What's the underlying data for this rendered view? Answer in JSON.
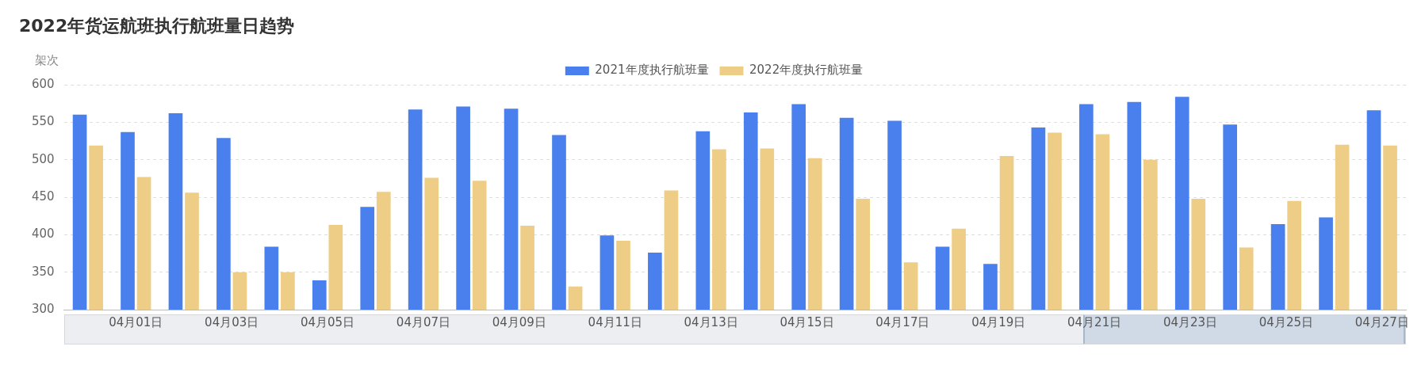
{
  "chart_data": {
    "type": "bar",
    "title": "2022年货运航班执行航班量日趋势",
    "ylabel": "架次",
    "categories": [
      null,
      "04月01日",
      null,
      "04月03日",
      null,
      "04月05日",
      null,
      "04月07日",
      null,
      "04月09日",
      null,
      "04月11日",
      null,
      "04月13日",
      null,
      "04月15日",
      null,
      "04月17日",
      null,
      "04月19日",
      null,
      "04月21日",
      null,
      "04月23日",
      null,
      "04月25日",
      null,
      "04月27日"
    ],
    "series": [
      {
        "name": "2021年度执行航班量",
        "color": "#4a80ee",
        "values": [
          560,
          537,
          562,
          529,
          384,
          339,
          437,
          567,
          571,
          568,
          533,
          399,
          376,
          538,
          563,
          574,
          556,
          552,
          384,
          361,
          543,
          574,
          577,
          584,
          547,
          414,
          423,
          566
        ]
      },
      {
        "name": "2022年度执行航班量",
        "color": "#eecd87",
        "values": [
          519,
          477,
          456,
          350,
          350,
          413,
          457,
          476,
          472,
          412,
          331,
          392,
          459,
          514,
          515,
          502,
          448,
          363,
          408,
          505,
          536,
          534,
          500,
          448,
          383,
          445,
          520,
          519
        ]
      }
    ],
    "ylim": [
      300,
      600
    ],
    "yticks": [
      300,
      350,
      400,
      450,
      500,
      550,
      600
    ],
    "grid": "y",
    "legend": "top"
  }
}
